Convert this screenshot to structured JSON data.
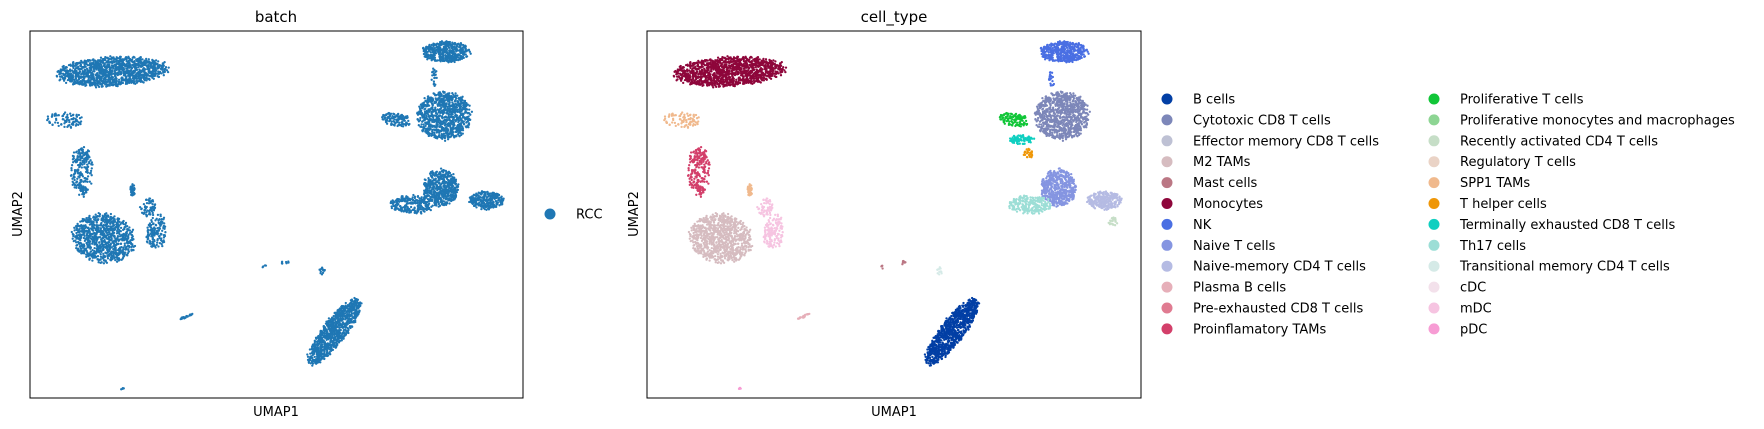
{
  "chart_data": [
    {
      "type": "scatter",
      "title": "batch",
      "xlabel": "UMAP1",
      "ylabel": "UMAP2",
      "grid": false,
      "ticks": "none",
      "legend_placement": "right, outside plot",
      "legend": [
        {
          "label": "RCC",
          "color": "#1f77b4"
        }
      ],
      "clusters": [
        {
          "cx": -4.3,
          "cy": 8.3,
          "rx": 1.75,
          "ry": 0.55,
          "angle": 4,
          "n": 1300
        },
        {
          "cx": -5.7,
          "cy": 6.6,
          "rx": 0.6,
          "ry": 0.3,
          "angle": 0,
          "n": 90
        },
        {
          "cx": -5.2,
          "cy": 4.8,
          "rx": 0.35,
          "ry": 0.95,
          "angle": 0,
          "n": 230
        },
        {
          "cx": -4.55,
          "cy": 2.4,
          "rx": 1.0,
          "ry": 0.9,
          "angle": -25,
          "n": 900
        },
        {
          "cx": -3.0,
          "cy": 2.6,
          "rx": 0.3,
          "ry": 0.7,
          "angle": -5,
          "n": 150
        },
        {
          "cx": -3.7,
          "cy": 4.1,
          "rx": 0.08,
          "ry": 0.25,
          "angle": 0,
          "n": 40
        },
        {
          "cx": -3.25,
          "cy": 3.5,
          "rx": 0.25,
          "ry": 0.35,
          "angle": 0,
          "n": 60
        },
        {
          "cx": 5.55,
          "cy": 9.0,
          "rx": 0.75,
          "ry": 0.4,
          "angle": 0,
          "n": 450
        },
        {
          "cx": 5.5,
          "cy": 6.75,
          "rx": 0.85,
          "ry": 0.9,
          "angle": 0,
          "n": 900
        },
        {
          "cx": 4.1,
          "cy": 6.6,
          "rx": 0.5,
          "ry": 0.25,
          "angle": -15,
          "n": 120
        },
        {
          "cx": 5.4,
          "cy": 4.2,
          "rx": 0.55,
          "ry": 0.7,
          "angle": 0,
          "n": 550
        },
        {
          "cx": 4.55,
          "cy": 3.6,
          "rx": 0.7,
          "ry": 0.35,
          "angle": 0,
          "n": 230
        },
        {
          "cx": 6.75,
          "cy": 3.75,
          "rx": 0.55,
          "ry": 0.35,
          "angle": 0,
          "n": 280
        },
        {
          "cx": 5.2,
          "cy": 8.1,
          "rx": 0.1,
          "ry": 0.35,
          "angle": 0,
          "n": 20
        },
        {
          "cx": 2.25,
          "cy": -0.9,
          "rx": 1.45,
          "ry": 0.4,
          "angle": 58,
          "n": 900
        },
        {
          "cx": 0.8,
          "cy": 1.55,
          "rx": 0.15,
          "ry": 0.07,
          "angle": 0,
          "n": 8
        },
        {
          "cx": 0.2,
          "cy": 1.4,
          "rx": 0.07,
          "ry": 0.07,
          "angle": 0,
          "n": 4
        },
        {
          "cx": 1.9,
          "cy": 1.25,
          "rx": 0.1,
          "ry": 0.15,
          "angle": 0,
          "n": 12
        },
        {
          "cx": -2.1,
          "cy": -0.35,
          "rx": 0.22,
          "ry": 0.04,
          "angle": 25,
          "n": 25
        },
        {
          "cx": -4.0,
          "cy": -2.9,
          "rx": 0.07,
          "ry": 0.03,
          "angle": 25,
          "n": 5
        }
      ]
    },
    {
      "type": "scatter",
      "title": "cell_type",
      "xlabel": "UMAP1",
      "ylabel": "UMAP2",
      "grid": false,
      "ticks": "none",
      "legend_placement": "right, outside plot",
      "legend": [
        {
          "label": "B cells",
          "color": "#023fa5"
        },
        {
          "label": "Cytotoxic CD8 T cells",
          "color": "#7d87b9"
        },
        {
          "label": "Effector memory CD8 T cells",
          "color": "#bec1d4"
        },
        {
          "label": "M2 TAMs",
          "color": "#d6bcc0"
        },
        {
          "label": "Mast cells",
          "color": "#bb7784"
        },
        {
          "label": "Monocytes",
          "color": "#8e063b"
        },
        {
          "label": "NK",
          "color": "#4a6fe3"
        },
        {
          "label": "Naive T cells",
          "color": "#8595e1"
        },
        {
          "label": "Naive-memory CD4 T cells",
          "color": "#b5bbe3"
        },
        {
          "label": "Plasma B cells",
          "color": "#e6afb9"
        },
        {
          "label": "Pre-exhausted CD8 T cells",
          "color": "#e07b91"
        },
        {
          "label": "Proinflamatory TAMs",
          "color": "#d33f6a"
        },
        {
          "label": "Proliferative T cells",
          "color": "#11c638"
        },
        {
          "label": "Proliferative monocytes and macrophages",
          "color": "#8dd593"
        },
        {
          "label": "Recently activated CD4 T cells",
          "color": "#c6dec7"
        },
        {
          "label": "Regulatory T cells",
          "color": "#ead3c6"
        },
        {
          "label": "SPP1 TAMs",
          "color": "#f0b98d"
        },
        {
          "label": "T helper cells",
          "color": "#ef9708"
        },
        {
          "label": "Terminally exhausted CD8 T cells",
          "color": "#0fcfc0"
        },
        {
          "label": "Th17 cells",
          "color": "#9cded6"
        },
        {
          "label": "Transitional memory CD4 T cells",
          "color": "#d5eae7"
        },
        {
          "label": "cDC",
          "color": "#f3e1eb"
        },
        {
          "label": "mDC",
          "color": "#f6c4e1"
        },
        {
          "label": "pDC",
          "color": "#f79cd4"
        }
      ],
      "clusters": [
        {
          "cx": -4.3,
          "cy": 8.3,
          "rx": 1.75,
          "ry": 0.55,
          "angle": 4,
          "n": 1300,
          "type": "Monocytes"
        },
        {
          "cx": -5.7,
          "cy": 6.6,
          "rx": 0.6,
          "ry": 0.3,
          "angle": 0,
          "n": 90,
          "type": "SPP1 TAMs"
        },
        {
          "cx": -5.2,
          "cy": 4.8,
          "rx": 0.35,
          "ry": 0.95,
          "angle": 0,
          "n": 230,
          "type": "Proinflamatory TAMs"
        },
        {
          "cx": -4.55,
          "cy": 2.4,
          "rx": 1.0,
          "ry": 0.9,
          "angle": -25,
          "n": 900,
          "type": "M2 TAMs"
        },
        {
          "cx": -3.0,
          "cy": 2.6,
          "rx": 0.3,
          "ry": 0.7,
          "angle": -5,
          "n": 150,
          "type": "mDC"
        },
        {
          "cx": -3.7,
          "cy": 4.1,
          "rx": 0.08,
          "ry": 0.25,
          "angle": 0,
          "n": 40,
          "type": "SPP1 TAMs"
        },
        {
          "cx": -3.25,
          "cy": 3.5,
          "rx": 0.25,
          "ry": 0.35,
          "angle": 0,
          "n": 60,
          "type": "mDC"
        },
        {
          "cx": 5.55,
          "cy": 9.0,
          "rx": 0.75,
          "ry": 0.4,
          "angle": 0,
          "n": 450,
          "type": "NK"
        },
        {
          "cx": 5.5,
          "cy": 6.75,
          "rx": 0.85,
          "ry": 0.9,
          "angle": 0,
          "n": 900,
          "type": "Cytotoxic CD8 T cells"
        },
        {
          "cx": 4.1,
          "cy": 6.6,
          "rx": 0.5,
          "ry": 0.25,
          "angle": -15,
          "n": 120,
          "type": "Proliferative T cells"
        },
        {
          "cx": 4.3,
          "cy": 5.9,
          "rx": 0.4,
          "ry": 0.18,
          "angle": 0,
          "n": 80,
          "type": "Terminally exhausted CD8 T cells"
        },
        {
          "cx": 4.5,
          "cy": 5.4,
          "rx": 0.15,
          "ry": 0.2,
          "angle": 0,
          "n": 30,
          "type": "T helper cells"
        },
        {
          "cx": 5.4,
          "cy": 4.2,
          "rx": 0.55,
          "ry": 0.7,
          "angle": 0,
          "n": 550,
          "type": "Naive T cells"
        },
        {
          "cx": 4.55,
          "cy": 3.6,
          "rx": 0.7,
          "ry": 0.35,
          "angle": 0,
          "n": 230,
          "type": "Th17 cells"
        },
        {
          "cx": 6.75,
          "cy": 3.75,
          "rx": 0.55,
          "ry": 0.35,
          "angle": 0,
          "n": 280,
          "type": "Naive-memory CD4 T cells"
        },
        {
          "cx": 7.0,
          "cy": 3.0,
          "rx": 0.15,
          "ry": 0.15,
          "angle": 0,
          "n": 25,
          "type": "Recently activated CD4 T cells"
        },
        {
          "cx": 5.2,
          "cy": 8.1,
          "rx": 0.1,
          "ry": 0.35,
          "angle": 0,
          "n": 20,
          "type": "NK"
        },
        {
          "cx": 2.25,
          "cy": -0.9,
          "rx": 1.45,
          "ry": 0.4,
          "angle": 58,
          "n": 900,
          "type": "B cells"
        },
        {
          "cx": 0.8,
          "cy": 1.55,
          "rx": 0.15,
          "ry": 0.07,
          "angle": 0,
          "n": 8,
          "type": "Mast cells"
        },
        {
          "cx": 0.2,
          "cy": 1.4,
          "rx": 0.07,
          "ry": 0.07,
          "angle": 0,
          "n": 4,
          "type": "Mast cells"
        },
        {
          "cx": 1.9,
          "cy": 1.25,
          "rx": 0.1,
          "ry": 0.15,
          "angle": 0,
          "n": 12,
          "type": "Transitional memory CD4 T cells"
        },
        {
          "cx": -2.1,
          "cy": -0.35,
          "rx": 0.22,
          "ry": 0.04,
          "angle": 25,
          "n": 25,
          "type": "Plasma B cells"
        },
        {
          "cx": -4.0,
          "cy": -2.9,
          "rx": 0.07,
          "ry": 0.03,
          "angle": 25,
          "n": 5,
          "type": "pDC"
        }
      ]
    }
  ]
}
